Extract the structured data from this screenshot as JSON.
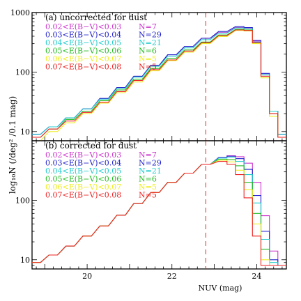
{
  "xlabel": "NUV (mag)",
  "ylabel": "log₁₀N (/deg² /0.1 mag)",
  "chart_data": [
    {
      "type": "line",
      "panel_label": "(a) uncorrected for dust",
      "xlim": [
        18.7,
        24.7
      ],
      "ylim": [
        7,
        1000
      ],
      "yscale": "log",
      "x_ticks": [
        "20",
        "22",
        "24"
      ],
      "y_ticks": [
        {
          "value": 10,
          "label": "10"
        },
        {
          "value": 100,
          "label": "100"
        },
        {
          "value": 1000,
          "label": "1000"
        }
      ],
      "reference_line_x": 22.8,
      "series": [
        {
          "name": "0.02<E(B−V)<0.03",
          "count_label": "N=7",
          "color": "#cc33cc",
          "x": [
            18.8,
            19.2,
            19.6,
            20.0,
            20.4,
            20.8,
            21.2,
            21.6,
            22.0,
            22.4,
            22.8,
            23.2,
            23.6,
            23.8,
            24.0,
            24.2,
            24.4,
            24.6
          ],
          "y": [
            9,
            12,
            17,
            24,
            36,
            55,
            85,
            130,
            195,
            270,
            370,
            460,
            560,
            540,
            330,
            90,
            22,
            9
          ]
        },
        {
          "name": "0.03<E(B−V)<0.04",
          "count_label": "N=29",
          "color": "#2222cc",
          "x": [
            18.8,
            19.2,
            19.6,
            20.0,
            20.4,
            20.8,
            21.2,
            21.6,
            22.0,
            22.4,
            22.8,
            23.2,
            23.6,
            23.8,
            24.0,
            24.2,
            24.4,
            24.6
          ],
          "y": [
            9,
            12,
            17,
            24,
            36,
            55,
            85,
            130,
            195,
            270,
            370,
            480,
            580,
            560,
            340,
            95,
            22,
            9
          ]
        },
        {
          "name": "0.04<E(B−V)<0.05",
          "count_label": "N=21",
          "color": "#22cccc",
          "x": [
            18.8,
            19.2,
            19.6,
            20.0,
            20.4,
            20.8,
            21.2,
            21.6,
            22.0,
            22.4,
            22.8,
            23.2,
            23.6,
            23.8,
            24.0,
            24.2,
            24.4,
            24.6
          ],
          "y": [
            9,
            12,
            17,
            24,
            35,
            53,
            82,
            125,
            185,
            255,
            350,
            450,
            550,
            530,
            320,
            90,
            22,
            9
          ]
        },
        {
          "name": "0.05<E(B−V)<0.06",
          "count_label": "N=6",
          "color": "#22bb22",
          "x": [
            18.8,
            19.2,
            19.6,
            20.0,
            20.4,
            20.8,
            21.2,
            21.6,
            22.0,
            22.4,
            22.8,
            23.2,
            23.6,
            23.8,
            24.0,
            24.2,
            24.4,
            24.6
          ],
          "y": [
            8,
            11,
            16,
            22,
            33,
            50,
            76,
            115,
            170,
            235,
            320,
            420,
            520,
            510,
            310,
            85,
            20,
            8
          ]
        },
        {
          "name": "0.06<E(B−V)<0.07",
          "count_label": "N=5",
          "color": "#eeee22",
          "x": [
            18.8,
            19.2,
            19.6,
            20.0,
            20.4,
            20.8,
            21.2,
            21.6,
            22.0,
            22.4,
            22.8,
            23.2,
            23.6,
            23.8,
            24.0,
            24.2,
            24.4,
            24.6
          ],
          "y": [
            7,
            10,
            14,
            20,
            30,
            45,
            68,
            105,
            155,
            215,
            300,
            395,
            500,
            490,
            300,
            80,
            18,
            8
          ]
        },
        {
          "name": "0.07<E(B−V)<0.08",
          "count_label": "N=5",
          "color": "#ee2222",
          "x": [
            18.8,
            19.2,
            19.6,
            20.0,
            20.4,
            20.8,
            21.2,
            21.6,
            22.0,
            22.4,
            22.8,
            23.2,
            23.6,
            23.8,
            24.0,
            24.2,
            24.4,
            24.6
          ],
          "y": [
            8,
            11,
            15,
            21,
            31,
            47,
            72,
            110,
            160,
            225,
            310,
            410,
            510,
            500,
            310,
            85,
            20,
            8
          ]
        }
      ]
    },
    {
      "type": "line",
      "panel_label": "(b) corrected for dust",
      "xlim": [
        18.7,
        24.7
      ],
      "ylim": [
        7,
        1000
      ],
      "yscale": "log",
      "x_ticks": [
        "20",
        "22",
        "24"
      ],
      "y_ticks": [
        {
          "value": 10,
          "label": "10"
        },
        {
          "value": 100,
          "label": "100"
        },
        {
          "value": 1000,
          "label": "1000"
        }
      ],
      "reference_line_x": 22.8,
      "series": [
        {
          "name": "0.02<E(B−V)<0.03",
          "count_label": "N=7",
          "color": "#cc33cc",
          "x": [
            18.8,
            19.2,
            19.6,
            20.0,
            20.4,
            20.8,
            21.2,
            21.6,
            22.0,
            22.4,
            22.8,
            23.2,
            23.4,
            23.6,
            23.8,
            24.0,
            24.2,
            24.4,
            24.6
          ],
          "y": [
            9,
            12,
            17,
            25,
            37,
            56,
            88,
            135,
            200,
            285,
            400,
            520,
            560,
            540,
            420,
            200,
            55,
            14,
            8
          ]
        },
        {
          "name": "0.03<E(B−V)<0.04",
          "count_label": "N=29",
          "color": "#2222cc",
          "x": [
            18.8,
            19.2,
            19.6,
            20.0,
            20.4,
            20.8,
            21.2,
            21.6,
            22.0,
            22.4,
            22.8,
            23.2,
            23.4,
            23.6,
            23.8,
            24.0,
            24.2,
            24.4,
            24.6
          ],
          "y": [
            9,
            12,
            17,
            25,
            37,
            56,
            88,
            135,
            200,
            285,
            400,
            520,
            550,
            500,
            330,
            120,
            30,
            10,
            8
          ]
        },
        {
          "name": "0.04<E(B−V)<0.05",
          "count_label": "N=21",
          "color": "#22cccc",
          "x": [
            18.8,
            19.2,
            19.6,
            20.0,
            20.4,
            20.8,
            21.2,
            21.6,
            22.0,
            22.4,
            22.8,
            23.2,
            23.4,
            23.6,
            23.8,
            24.0,
            24.2,
            24.4,
            24.6
          ],
          "y": [
            9,
            12,
            17,
            25,
            37,
            56,
            88,
            135,
            200,
            285,
            400,
            510,
            530,
            450,
            270,
            90,
            22,
            9,
            8
          ]
        },
        {
          "name": "0.05<E(B−V)<0.06",
          "count_label": "N=6",
          "color": "#22bb22",
          "x": [
            18.8,
            19.2,
            19.6,
            20.0,
            20.4,
            20.8,
            21.2,
            21.6,
            22.0,
            22.4,
            22.8,
            23.2,
            23.4,
            23.6,
            23.8,
            24.0,
            24.2,
            24.4,
            24.6
          ],
          "y": [
            9,
            12,
            17,
            25,
            37,
            56,
            88,
            135,
            200,
            285,
            400,
            490,
            480,
            380,
            200,
            60,
            15,
            8,
            8
          ]
        },
        {
          "name": "0.06<E(B−V)<0.07",
          "count_label": "N=5",
          "color": "#eeee22",
          "x": [
            18.8,
            19.2,
            19.6,
            20.0,
            20.4,
            20.8,
            21.2,
            21.6,
            22.0,
            22.4,
            22.8,
            23.2,
            23.4,
            23.6,
            23.8,
            24.0,
            24.2,
            24.4,
            24.6
          ],
          "y": [
            9,
            12,
            17,
            25,
            37,
            56,
            88,
            135,
            200,
            285,
            400,
            470,
            440,
            320,
            150,
            40,
            10,
            8,
            8
          ]
        },
        {
          "name": "0.07<E(B−V)<0.08",
          "count_label": "N=5",
          "color": "#ee2222",
          "x": [
            18.8,
            19.2,
            19.6,
            20.0,
            20.4,
            20.8,
            21.2,
            21.6,
            22.0,
            22.4,
            22.8,
            23.2,
            23.4,
            23.6,
            23.8,
            24.0,
            24.2,
            24.4,
            24.6
          ],
          "y": [
            9,
            12,
            17,
            25,
            37,
            56,
            88,
            135,
            200,
            285,
            400,
            450,
            400,
            270,
            110,
            25,
            8,
            8,
            8
          ]
        }
      ]
    }
  ]
}
